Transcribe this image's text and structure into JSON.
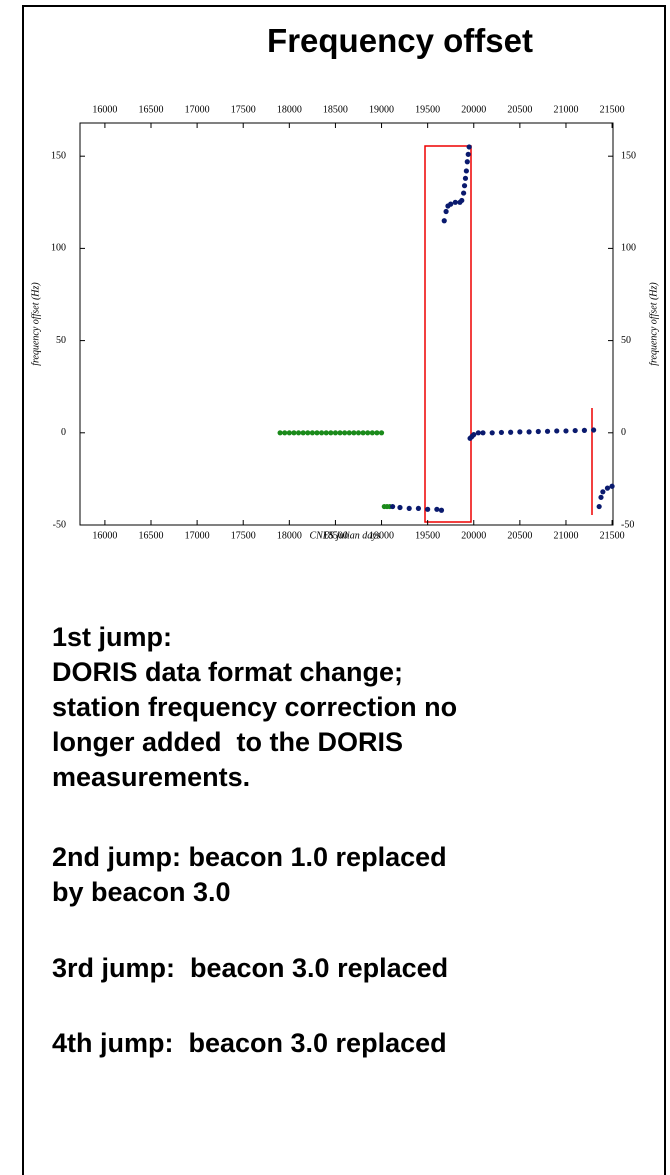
{
  "chart_data": {
    "type": "scatter",
    "title": "Frequency offset",
    "xlabel": "CNES julian days",
    "ylabel": "frequency offset (Hz)",
    "xlim": [
      15730,
      21510
    ],
    "ylim": [
      -50,
      168
    ],
    "xticks": [
      16000,
      16500,
      17000,
      17500,
      18000,
      18500,
      19000,
      19500,
      20000,
      20500,
      21000,
      21500
    ],
    "yticks": [
      -50,
      0,
      50,
      100,
      150
    ],
    "series": [
      {
        "color": "#1a8a1a",
        "x": [
          17900,
          17950,
          18000,
          18050,
          18100,
          18150,
          18200,
          18250,
          18300,
          18350,
          18400,
          18450,
          18500,
          18550,
          18600,
          18650,
          18700,
          18750,
          18800,
          18850,
          18900,
          18950,
          19000,
          19030,
          19060,
          19090
        ],
        "values": [
          0,
          0,
          0,
          0,
          0,
          0,
          0,
          0,
          0,
          0,
          0,
          0,
          0,
          0,
          0,
          0,
          0,
          0,
          0,
          0,
          0,
          0,
          0,
          -40,
          -40,
          -40
        ]
      },
      {
        "color": "#0a1a6e",
        "x": [
          19120,
          19200,
          19300,
          19400,
          19500,
          19600,
          19650,
          19680,
          19700,
          19720,
          19750,
          19800,
          19850,
          19870,
          19890,
          19900,
          19910,
          19920,
          19930,
          19940,
          19950,
          19960,
          19980,
          20000,
          20050,
          20100,
          20200,
          20300,
          20400,
          20500,
          20600,
          20700,
          20800,
          20900,
          21000,
          21100,
          21200,
          21300,
          21360,
          21380,
          21400,
          21450,
          21500
        ],
        "values": [
          -40,
          -40.5,
          -41,
          -41,
          -41.5,
          -41.5,
          -42,
          115,
          120,
          123,
          124,
          125,
          125,
          126,
          130,
          134,
          138,
          142,
          147,
          151,
          155,
          -3,
          -2,
          -1,
          0,
          0,
          0,
          0.2,
          0.3,
          0.5,
          0.5,
          0.7,
          0.8,
          1,
          1,
          1.2,
          1.3,
          1.5,
          -40,
          -35,
          -32,
          -30,
          -29
        ]
      }
    ]
  },
  "notes": [
    "1st jump:\nDORIS data format change;\nstation frequency correction no\nlonger added  to the DORIS\nmeasurements.",
    "2nd jump: beacon 1.0 replaced\nby beacon 3.0",
    "3rd jump:  beacon 3.0 replaced",
    "4th jump:  beacon 3.0 replaced"
  ]
}
